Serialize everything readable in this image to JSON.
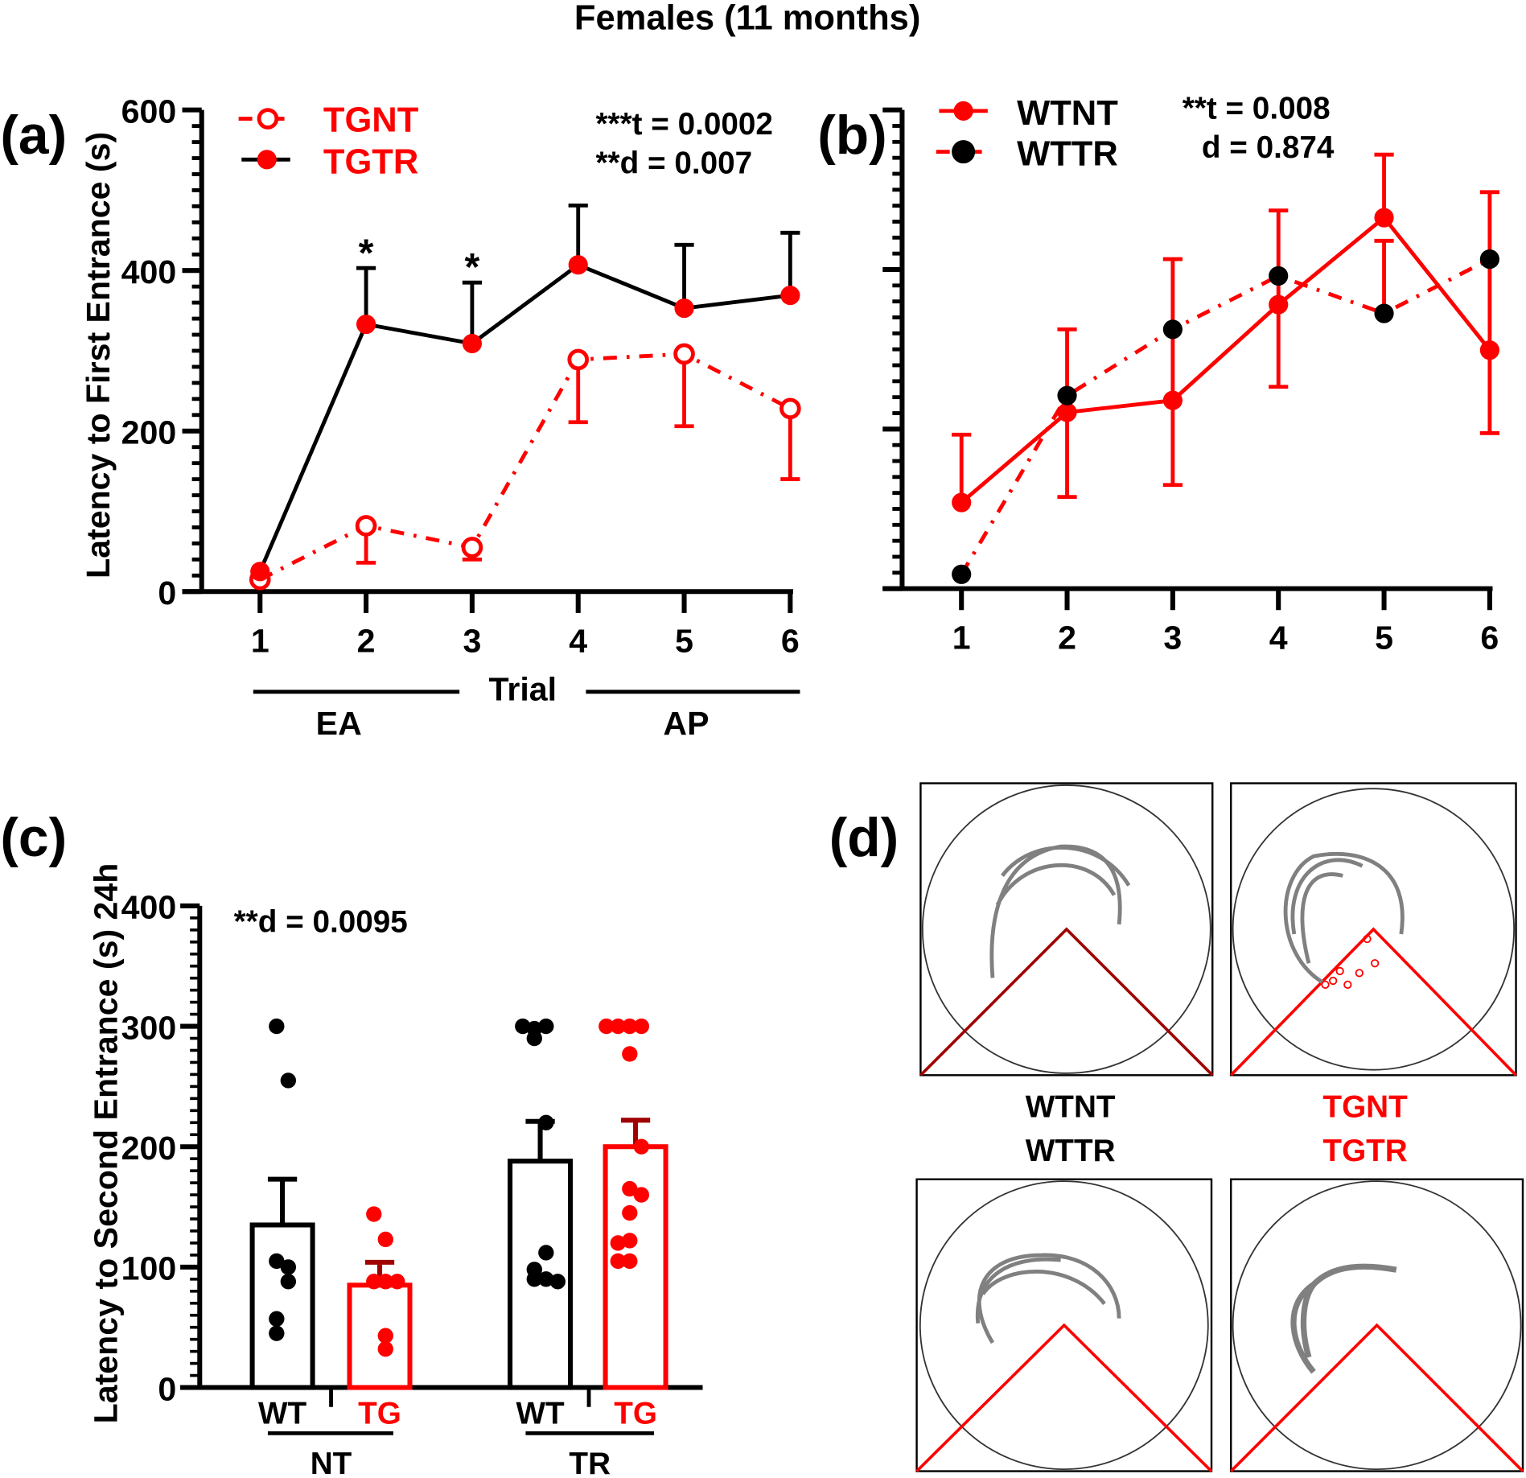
{
  "title": "Females (11 months)",
  "colors": {
    "red": "#ff0000",
    "black": "#000000",
    "dark_red": "#a00000",
    "trace": "#808080"
  },
  "chart_data": [
    {
      "panel": "(a)",
      "type": "line",
      "ylabel": "Latency to First Entrance (s)",
      "xlabel": "Trial",
      "ylim": [
        0,
        600
      ],
      "yticks": [
        0,
        200,
        400,
        600
      ],
      "x": [
        1,
        2,
        3,
        4,
        5,
        6
      ],
      "stats": [
        "***t = 0.0002",
        "**d = 0.007"
      ],
      "significance_marks": [
        {
          "x": 2,
          "label": "*"
        },
        {
          "x": 3,
          "label": "*"
        }
      ],
      "phase_labels": [
        {
          "label": "EA",
          "from": 1,
          "to": 3
        },
        {
          "label": "AP",
          "from": 4,
          "to": 6
        }
      ],
      "series": [
        {
          "name": "TGNT",
          "marker": "open-circle",
          "line": "dash-dot",
          "line_color": "#ff0000",
          "marker_color": "#ff0000",
          "values": [
            15,
            82,
            55,
            289,
            296,
            228
          ],
          "error_low": [
            null,
            36,
            40,
            211,
            206,
            140
          ],
          "error_high": [
            null,
            null,
            null,
            null,
            null,
            null
          ]
        },
        {
          "name": "TGTR",
          "marker": "filled-circle",
          "line": "solid",
          "line_color": "#000000",
          "marker_color": "#ff0000",
          "values": [
            25,
            333,
            309,
            407,
            353,
            369
          ],
          "error_low": [
            null,
            null,
            null,
            null,
            null,
            null
          ],
          "error_high": [
            null,
            403,
            385,
            481,
            432,
            447
          ]
        }
      ]
    },
    {
      "panel": "(b)",
      "type": "line",
      "ylim": [
        0,
        600
      ],
      "x": [
        1,
        2,
        3,
        4,
        5,
        6
      ],
      "stats": [
        "**t = 0.008",
        "d = 0.874"
      ],
      "series": [
        {
          "name": "WTNT",
          "marker": "filled-circle",
          "line": "solid",
          "line_color": "#ff0000",
          "marker_color": "#ff0000",
          "values": [
            108,
            221,
            236,
            356,
            465,
            299
          ],
          "error_low": [
            null,
            115,
            130,
            253,
            null,
            195
          ],
          "error_high": [
            193,
            325,
            413,
            474,
            544,
            497
          ]
        },
        {
          "name": "WTTR",
          "marker": "filled-circle",
          "line": "dash-dot",
          "line_color": "#ff0000",
          "marker_color": "#000000",
          "values": [
            18,
            242,
            325,
            392,
            345,
            413
          ],
          "error_low": [
            null,
            null,
            null,
            null,
            null,
            null
          ],
          "error_high": [
            null,
            null,
            null,
            null,
            436,
            null
          ]
        }
      ]
    },
    {
      "panel": "(c)",
      "type": "bar",
      "ylabel": "Latency to Second Entrance (s) 24h",
      "ylim": [
        0,
        400
      ],
      "yticks": [
        0,
        100,
        200,
        300,
        400
      ],
      "stats": [
        "**d = 0.0095"
      ],
      "groups": [
        "NT",
        "TR"
      ],
      "bars": [
        {
          "group": "NT",
          "label": "WT",
          "color": "#000000",
          "mean": 135,
          "sem_high": 173,
          "points": [
            300,
            255,
            105,
            100,
            88,
            57,
            45
          ]
        },
        {
          "group": "NT",
          "label": "TG",
          "color": "#ff0000",
          "mean": 85,
          "sem_high": 104,
          "points": [
            144,
            123,
            88,
            88,
            88,
            43,
            32
          ]
        },
        {
          "group": "TR",
          "label": "WT",
          "color": "#000000",
          "mean": 188,
          "sem_high": 221,
          "points": [
            298,
            290,
            300,
            300,
            220,
            112,
            98,
            90,
            90,
            88
          ]
        },
        {
          "group": "TR",
          "label": "TG",
          "color": "#ff0000",
          "mean": 200,
          "sem_high": 222,
          "points": [
            300,
            300,
            300,
            300,
            277,
            200,
            165,
            160,
            145,
            122,
            120,
            105,
            105
          ]
        }
      ]
    }
  ],
  "panel_d": {
    "label": "(d)",
    "wt_labels": [
      "WTNT",
      "WTTR"
    ],
    "tg_labels": [
      "TGNT",
      "TGTR"
    ]
  }
}
